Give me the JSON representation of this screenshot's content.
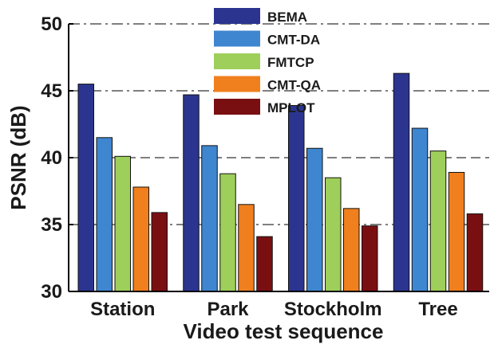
{
  "chart_data": {
    "type": "bar",
    "title": "",
    "xlabel": "Video test sequence",
    "ylabel": "PSNR (dB)",
    "ylim": [
      30,
      50
    ],
    "yticks": [
      30,
      35,
      40,
      45,
      50
    ],
    "grid": true,
    "legend_position": "top-center",
    "categories": [
      "Station",
      "Park",
      "Stockholm",
      "Tree"
    ],
    "series": [
      {
        "name": "BEMA",
        "color": "#2b3590",
        "values": [
          45.5,
          44.7,
          43.9,
          46.3
        ]
      },
      {
        "name": "CMT-DA",
        "color": "#3f86d0",
        "values": [
          41.5,
          40.9,
          40.7,
          42.2
        ]
      },
      {
        "name": "FMTCP",
        "color": "#9ecf5a",
        "values": [
          40.1,
          38.8,
          38.5,
          40.5
        ]
      },
      {
        "name": "CMT-QA",
        "color": "#f07f1e",
        "values": [
          37.8,
          36.5,
          36.2,
          38.9
        ]
      },
      {
        "name": "MPLOT",
        "color": "#7a0f12",
        "values": [
          35.9,
          34.1,
          34.9,
          35.8
        ]
      }
    ]
  }
}
